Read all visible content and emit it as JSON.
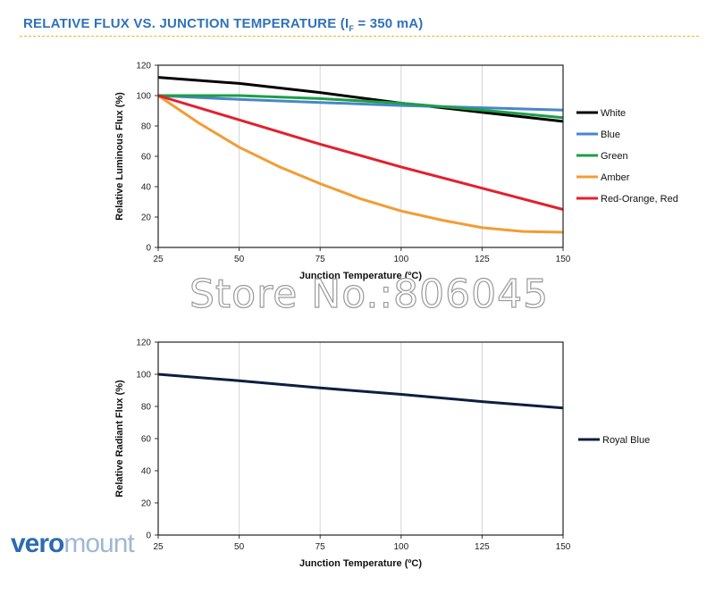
{
  "header": {
    "title_pre": "RELATIVE FLUX VS. JUNCTION TEMPERATURE (I",
    "title_sub": "F",
    "title_post": " = 350 mA)"
  },
  "watermark": "Store No.:806045",
  "logo": {
    "part1": "vero",
    "part2": "mount"
  },
  "colors": {
    "title": "#2f72b8",
    "rule": "#f2b31c",
    "logo_dark": "#2b6cb0",
    "logo_light": "#9fb7d4"
  },
  "chart_data": [
    {
      "type": "line",
      "xlabel": "Junction Temperature (ºC)",
      "ylabel": "Relative Luminous Flux (%)",
      "xlim": [
        25,
        150
      ],
      "ylim": [
        0,
        120
      ],
      "xticks": [
        25,
        50,
        75,
        100,
        125,
        150
      ],
      "yticks": [
        0,
        20,
        40,
        60,
        80,
        100,
        120
      ],
      "legend_position": "right",
      "grid": "vertical",
      "series": [
        {
          "name": "White",
          "color": "#000000",
          "x": [
            25,
            50,
            75,
            100,
            125,
            150
          ],
          "y": [
            112,
            108,
            102,
            95,
            89,
            83
          ]
        },
        {
          "name": "Blue",
          "color": "#4a86c8",
          "x": [
            25,
            50,
            75,
            100,
            125,
            150
          ],
          "y": [
            100,
            97.5,
            95.5,
            93.5,
            92,
            90.5
          ]
        },
        {
          "name": "Green",
          "color": "#1e9e46",
          "x": [
            25,
            50,
            75,
            100,
            125,
            150
          ],
          "y": [
            100,
            100,
            98,
            95,
            90.5,
            85.5
          ]
        },
        {
          "name": "Amber",
          "color": "#f39c33",
          "x": [
            25,
            37.5,
            50,
            62.5,
            75,
            87.5,
            100,
            112.5,
            125,
            137.5,
            150
          ],
          "y": [
            100,
            82,
            66,
            53,
            42,
            32,
            24,
            18,
            13,
            10.5,
            10
          ]
        },
        {
          "name": "Red-Orange, Red",
          "color": "#e3202e",
          "x": [
            25,
            50,
            75,
            100,
            125,
            150
          ],
          "y": [
            100,
            84,
            68,
            53,
            39,
            25
          ]
        }
      ]
    },
    {
      "type": "line",
      "xlabel": "Junction Temperature (ºC)",
      "ylabel": "Relative Radiant Flux (%)",
      "xlim": [
        25,
        150
      ],
      "ylim": [
        0,
        120
      ],
      "xticks": [
        25,
        50,
        75,
        100,
        125,
        150
      ],
      "yticks": [
        0,
        20,
        40,
        60,
        80,
        100,
        120
      ],
      "legend_position": "right",
      "grid": "vertical",
      "series": [
        {
          "name": "Royal Blue",
          "color": "#0d1f3f",
          "x": [
            25,
            50,
            75,
            100,
            125,
            150
          ],
          "y": [
            100,
            96,
            91.5,
            87.5,
            83,
            79
          ]
        }
      ]
    }
  ]
}
